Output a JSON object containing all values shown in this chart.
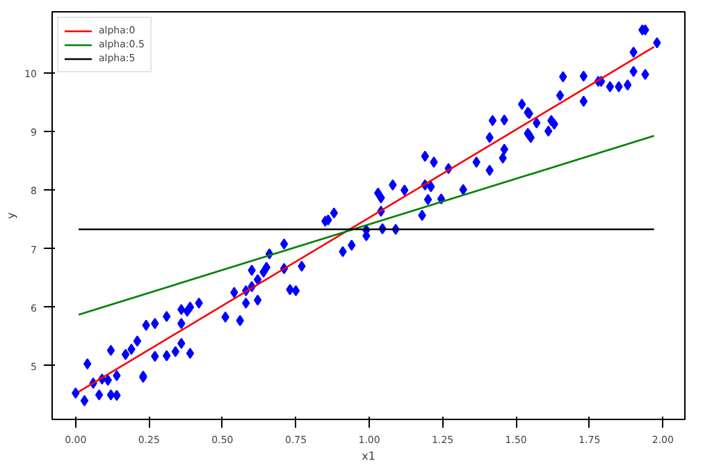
{
  "chart_data": {
    "type": "scatter",
    "xlabel": "x1",
    "ylabel": "y",
    "xlim": [
      -0.08,
      2.075
    ],
    "ylim": [
      4.08,
      11.05
    ],
    "xticks": [
      {
        "value": 0,
        "label": "0.00"
      },
      {
        "value": 0.25,
        "label": "0.25"
      },
      {
        "value": 0.5,
        "label": "0.50"
      },
      {
        "value": 0.75,
        "label": "0.75"
      },
      {
        "value": 1,
        "label": "1.00"
      },
      {
        "value": 1.25,
        "label": "1.25"
      },
      {
        "value": 1.5,
        "label": "1.50"
      },
      {
        "value": 1.75,
        "label": "1.75"
      },
      {
        "value": 2,
        "label": "2.00"
      }
    ],
    "yticks": [
      5,
      6,
      7,
      8,
      9,
      10
    ],
    "grid": false,
    "legend": "top left",
    "series": [
      {
        "marker": "diamond",
        "color": "#0000ff",
        "x": [
          0.0,
          0.03,
          0.04,
          0.06,
          0.08,
          0.09,
          0.11,
          0.12,
          0.12,
          0.14,
          0.14,
          0.17,
          0.19,
          0.21,
          0.23,
          0.23,
          0.24,
          0.27,
          0.27,
          0.31,
          0.31,
          0.34,
          0.36,
          0.36,
          0.36,
          0.38,
          0.39,
          0.39,
          0.42,
          0.51,
          0.54,
          0.56,
          0.58,
          0.58,
          0.6,
          0.6,
          0.62,
          0.62,
          0.64,
          0.65,
          0.66,
          0.71,
          0.71,
          0.73,
          0.75,
          0.77,
          0.85,
          0.86,
          0.88,
          0.91,
          0.94,
          0.99,
          0.99,
          1.03,
          1.04,
          1.04,
          1.045,
          1.08,
          1.09,
          1.12,
          1.18,
          1.19,
          1.19,
          1.2,
          1.21,
          1.22,
          1.245,
          1.27,
          1.32,
          1.365,
          1.41,
          1.41,
          1.42,
          1.455,
          1.46,
          1.46,
          1.52,
          1.54,
          1.545,
          1.54,
          1.545,
          1.55,
          1.57,
          1.61,
          1.62,
          1.63,
          1.65,
          1.66,
          1.73,
          1.73,
          1.78,
          1.79,
          1.82,
          1.85,
          1.88,
          1.9,
          1.9,
          1.93,
          1.94,
          1.94,
          1.98
        ],
        "values": [
          4.53,
          4.4,
          5.03,
          4.7,
          4.5,
          4.77,
          4.75,
          5.26,
          4.5,
          4.49,
          4.83,
          5.19,
          5.28,
          5.42,
          4.82,
          4.8,
          5.69,
          5.72,
          5.16,
          5.84,
          5.17,
          5.24,
          5.72,
          5.96,
          5.38,
          5.93,
          6.0,
          5.21,
          6.07,
          5.83,
          6.25,
          5.77,
          6.07,
          6.28,
          6.35,
          6.63,
          6.47,
          6.12,
          6.6,
          6.68,
          6.91,
          6.66,
          7.08,
          6.3,
          6.28,
          6.7,
          7.47,
          7.49,
          7.61,
          6.95,
          7.06,
          7.32,
          7.22,
          7.95,
          7.87,
          7.64,
          7.34,
          8.09,
          7.33,
          8.0,
          7.57,
          8.58,
          8.09,
          7.84,
          8.06,
          8.48,
          7.85,
          8.37,
          8.01,
          8.48,
          8.9,
          8.34,
          9.19,
          8.55,
          9.2,
          8.7,
          9.47,
          9.33,
          9.31,
          8.97,
          8.94,
          8.9,
          9.15,
          9.01,
          9.19,
          9.13,
          9.62,
          9.94,
          9.52,
          9.95,
          9.86,
          9.86,
          9.77,
          9.77,
          9.8,
          10.03,
          10.36,
          10.74,
          10.74,
          9.98,
          10.52
        ]
      },
      {
        "type": "line",
        "marker": "none",
        "name": "alpha:0",
        "color": "#ff0000",
        "x": [
          0.01,
          1.97
        ],
        "values": [
          4.55,
          10.45
        ]
      },
      {
        "type": "line",
        "marker": "none",
        "name": "alpha:0.5",
        "color": "#008000",
        "x": [
          0.01,
          1.97
        ],
        "values": [
          5.87,
          8.93
        ]
      },
      {
        "type": "line",
        "marker": "none",
        "name": "alpha:5",
        "color": "#000000",
        "x": [
          0.01,
          1.97
        ],
        "values": [
          7.33,
          7.33
        ]
      }
    ]
  }
}
